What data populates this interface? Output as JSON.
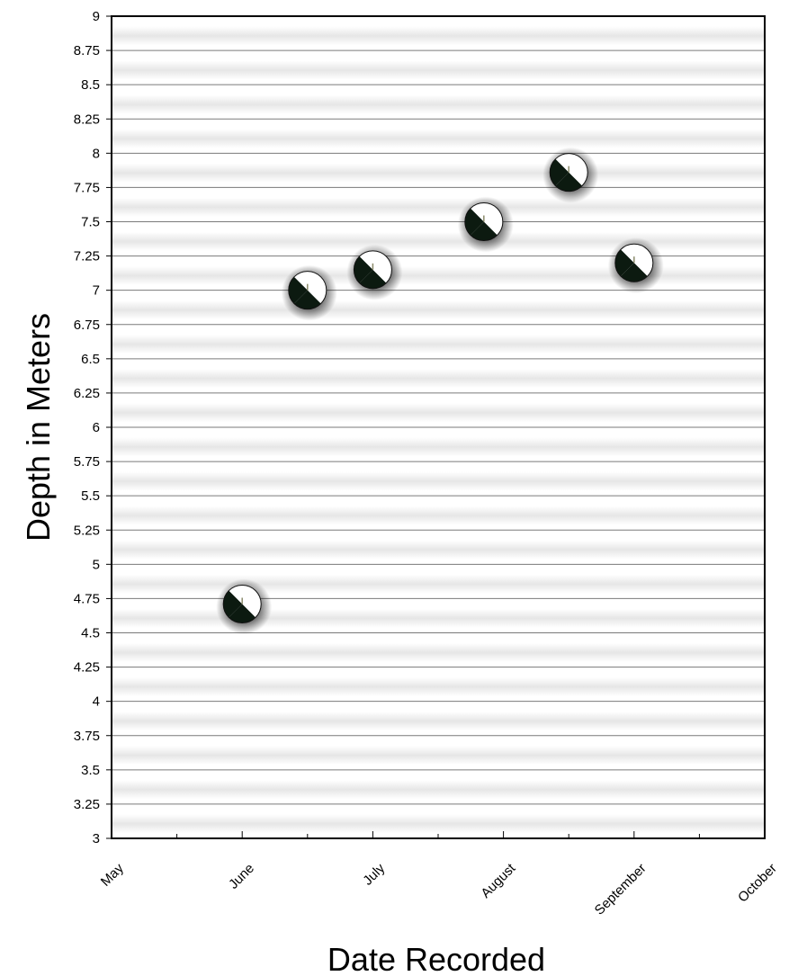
{
  "chart_data": {
    "type": "scatter",
    "title": "",
    "xlabel": "Date Recorded",
    "ylabel": "Depth in Meters",
    "x_categories": [
      "May",
      "June",
      "July",
      "August",
      "September",
      "October"
    ],
    "ylim": [
      3,
      9
    ],
    "y_ticks": [
      "3",
      "3.25",
      "3.5",
      "3.75",
      "4",
      "4.25",
      "4.5",
      "4.75",
      "5",
      "5.25",
      "5.5",
      "5.75",
      "6",
      "6.25",
      "6.5",
      "6.75",
      "7",
      "7.25",
      "7.5",
      "7.75",
      "8",
      "8.25",
      "8.5",
      "8.75",
      "9"
    ],
    "points": [
      {
        "date": "June 1",
        "depth": 4.71
      },
      {
        "date": "June 16",
        "depth": 7.0
      },
      {
        "date": "July 1",
        "depth": 7.15
      },
      {
        "date": "July 28",
        "depth": 7.5
      },
      {
        "date": "August 17",
        "depth": 7.86
      },
      {
        "date": "September 1",
        "depth": 7.2
      }
    ],
    "x_positions": [
      1.0,
      1.5,
      2.0,
      2.85,
      3.5,
      4.0
    ],
    "grid": true,
    "marker": "secchi-disk",
    "colors": {
      "disk_dark": "#0c1a10",
      "disk_light": "#ffffff",
      "band": "#e9e9e9",
      "gridline": "#7a7a7a",
      "axis": "#000000"
    }
  }
}
